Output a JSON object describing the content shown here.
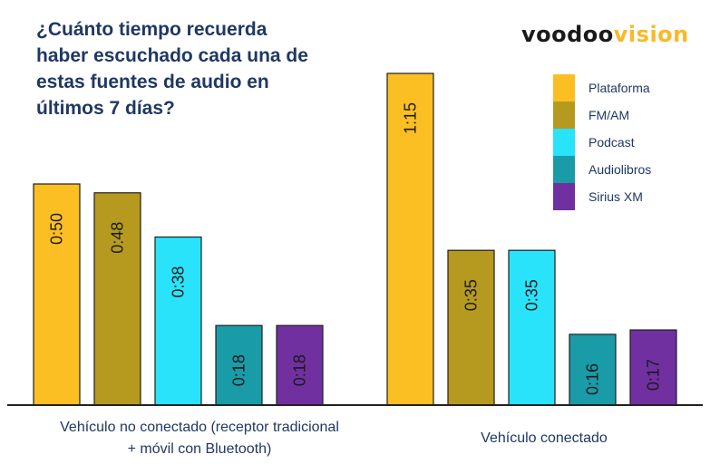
{
  "chart_data": {
    "type": "bar",
    "title": "¿Cuánto tiempo recuerda haber escuchado cada una de estas fuentes de audio en últimos 7 días?",
    "categories": [
      "Vehículo no conectado (receptor tradicional + móvil con Bluetooth)",
      "Vehículo conectado"
    ],
    "series": [
      {
        "name": "Plataforma",
        "color": "#fbbf24",
        "values": [
          50,
          75
        ],
        "labels": [
          "0:50",
          "1:15"
        ]
      },
      {
        "name": "FM/AM",
        "color": "#b59a1f",
        "values": [
          48,
          35
        ],
        "labels": [
          "0:48",
          "0:35"
        ]
      },
      {
        "name": "Podcast",
        "color": "#29e3fb",
        "values": [
          38,
          35
        ],
        "labels": [
          "0:38",
          "0:35"
        ]
      },
      {
        "name": "Audiolibros",
        "color": "#1a9ba8",
        "values": [
          18,
          16
        ],
        "labels": [
          "0:18",
          "0:16"
        ]
      },
      {
        "name": "Sirius XM",
        "color": "#7030a0",
        "values": [
          18,
          17
        ],
        "labels": [
          "0:18",
          "0:17"
        ]
      }
    ],
    "ylim": [
      0,
      75
    ],
    "legend_position": "top-right",
    "grid": false
  },
  "logo": {
    "part1": "voodoo",
    "part2": "vision"
  }
}
